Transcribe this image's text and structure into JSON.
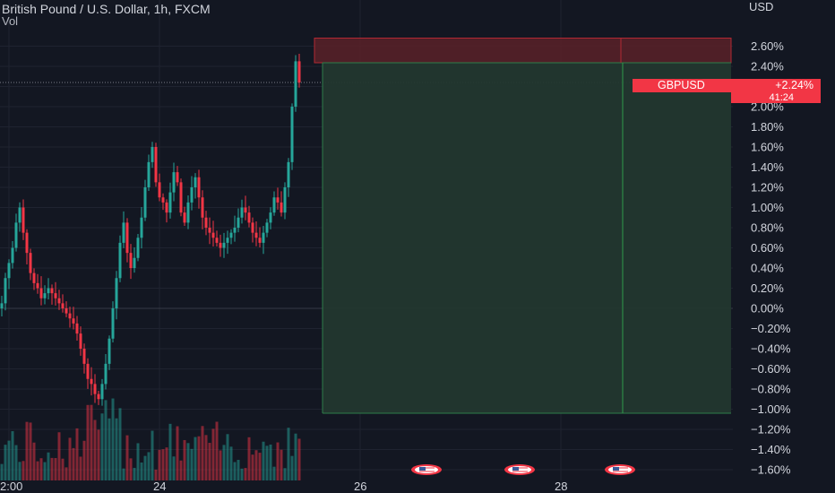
{
  "header": {
    "title": "British Pound / U.S. Dollar, 1h, FXCM",
    "volume_label": "Vol"
  },
  "axis": {
    "currency": "USD"
  },
  "price_badge": {
    "symbol": "GBPUSD",
    "change": "+2.24%",
    "countdown": "41:24"
  },
  "colors": {
    "background": "#131722",
    "up": "#26a69a",
    "down": "#f23645",
    "axis_text": "#d1d4dc",
    "grid": "#1f2330",
    "profit_zone": "#22372f",
    "loss_zone": "#5b2128"
  },
  "event_icons": [
    "us-flag-icon",
    "us-flag-icon",
    "us-flag-icon"
  ],
  "chart_data": {
    "type": "candlestick",
    "title": "British Pound / U.S. Dollar, 1h, FXCM",
    "y_unit": "percent change",
    "ylim": [
      -1.7,
      2.8
    ],
    "y_ticks": [
      "2.60%",
      "2.40%",
      "2.20%",
      "2.00%",
      "1.80%",
      "1.60%",
      "1.40%",
      "1.20%",
      "1.00%",
      "0.80%",
      "0.60%",
      "0.40%",
      "0.20%",
      "0.00%",
      "−0.20%",
      "−0.40%",
      "−0.60%",
      "−0.80%",
      "−1.00%",
      "−1.20%",
      "−1.40%",
      "−1.60%"
    ],
    "y_tick_values": [
      2.6,
      2.4,
      2.2,
      2.0,
      1.8,
      1.6,
      1.4,
      1.2,
      1.0,
      0.8,
      0.6,
      0.4,
      0.2,
      0.0,
      -0.2,
      -0.4,
      -0.6,
      -0.8,
      -1.0,
      -1.2,
      -1.4,
      -1.6
    ],
    "x_ticks": [
      "2:00",
      "24",
      "26",
      "28"
    ],
    "x_tick_bars": [
      2,
      44,
      100,
      156
    ],
    "grid": true,
    "closes": [
      0.05,
      0.3,
      0.45,
      0.6,
      0.85,
      1.0,
      0.75,
      0.55,
      0.35,
      0.25,
      0.2,
      0.1,
      0.15,
      0.2,
      0.15,
      0.1,
      0.05,
      0.0,
      -0.05,
      -0.1,
      -0.15,
      -0.25,
      -0.4,
      -0.55,
      -0.7,
      -0.75,
      -0.85,
      -0.9,
      -0.75,
      -0.55,
      -0.3,
      0.0,
      0.3,
      0.65,
      0.85,
      0.55,
      0.4,
      0.5,
      0.7,
      0.9,
      1.2,
      1.45,
      1.6,
      1.25,
      1.1,
      1.05,
      0.95,
      1.15,
      1.35,
      1.25,
      0.95,
      0.85,
      1.05,
      1.2,
      1.3,
      1.1,
      0.9,
      0.8,
      0.75,
      0.7,
      0.65,
      0.6,
      0.65,
      0.7,
      0.75,
      0.8,
      0.9,
      1.0,
      0.95,
      0.85,
      0.75,
      0.7,
      0.65,
      0.75,
      0.85,
      0.95,
      1.1,
      1.05,
      0.95,
      1.2,
      1.45,
      2.0,
      2.45,
      2.24
    ],
    "entry_level": 2.24,
    "target_level": -1.04,
    "stop_level": 2.68,
    "position_start_bar": 84,
    "position_end_bar": 197,
    "mid_marker_bar": 168,
    "current_price_level": 2.24
  }
}
